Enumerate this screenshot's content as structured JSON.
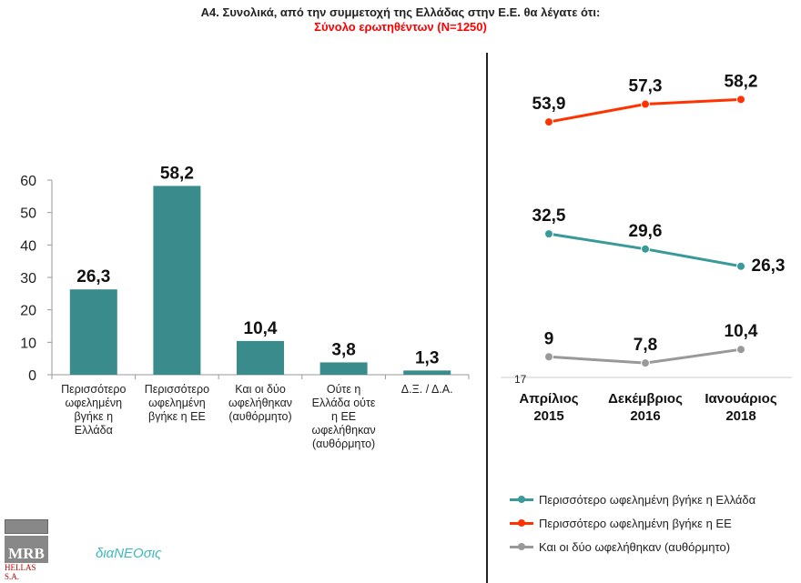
{
  "title": "A4. Συνολικά, από την συμμετοχή της Ελλάδας στην Ε.Ε. θα λέγατε ότι:",
  "subtitle": "Σύνολο ερωτηθέντων (N=1250)",
  "chart_data": [
    {
      "type": "bar",
      "categories": [
        [
          "Περισσότερο",
          "ωφελημένη",
          "βγήκε η",
          "Ελλάδα"
        ],
        [
          "Περισσότερο",
          "ωφελημένη",
          "βγήκε η ΕΕ"
        ],
        [
          "Και οι δύο",
          "ωφελήθηκαν",
          "(αυθόρμητο)"
        ],
        [
          "Ούτε η",
          "Ελλάδα ούτε",
          "η ΕΕ",
          "ωφελήθηκαν",
          "(αυθόρμητο)"
        ],
        [
          "Δ.Ξ. / Δ.Α."
        ]
      ],
      "values": [
        26.3,
        58.2,
        10.4,
        3.8,
        1.3
      ],
      "labels": [
        "26,3",
        "58,2",
        "10,4",
        "3,8",
        "1,3"
      ],
      "yticks": [
        "0",
        "10",
        "20",
        "30",
        "40",
        "50",
        "60"
      ],
      "ylim": [
        0,
        60
      ],
      "color": "#3a8c8c"
    },
    {
      "type": "line",
      "categories": [
        [
          "Απρίλιος",
          "2015"
        ],
        [
          "Δεκέμβριος",
          "2016"
        ],
        [
          "Ιανουάριος",
          "2018"
        ]
      ],
      "stray_label": "17",
      "series": [
        {
          "name": "Περισσότερο ωφελημένη βγήκε η Ελλάδα",
          "values": [
            32.5,
            29.6,
            26.3
          ],
          "labels": [
            "32,5",
            "29,6",
            "26,3"
          ],
          "color": "#3a9a9a"
        },
        {
          "name": "Περισσότερο ωφελημένη βγήκε η ΕΕ",
          "values": [
            53.9,
            57.3,
            58.2
          ],
          "labels": [
            "53,9",
            "57,3",
            "58,2"
          ],
          "color": "#ff3300"
        },
        {
          "name": "Και οι δύο ωφελήθηκαν (αυθόρμητο)",
          "values": [
            9,
            7.8,
            10.4
          ],
          "labels": [
            "9",
            "7,8",
            "10,4"
          ],
          "color": "#999999"
        }
      ]
    }
  ],
  "logos": {
    "mrb": "MRB",
    "mrb_sub": "HELLAS S.A.",
    "dianeosis": "διαΝΕΟσις"
  }
}
